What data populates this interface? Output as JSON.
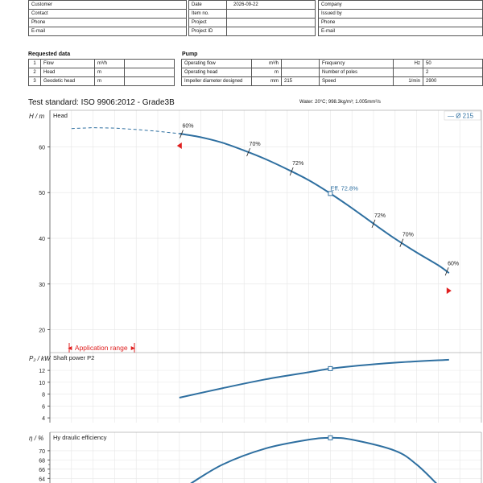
{
  "header": {
    "customer_rows": [
      {
        "label": "Customer",
        "label2": "Date",
        "value2": "2026-09-22",
        "label3": "Company"
      },
      {
        "label": "Contact",
        "label2": "Item no.",
        "value2": "",
        "label3": "Issued by"
      },
      {
        "label": "Phone",
        "label2": "Project",
        "value2": "",
        "label3": "Phone"
      },
      {
        "label": "E-mail",
        "label2": "Project ID",
        "value2": "",
        "label3": "E-mail"
      }
    ]
  },
  "requested_data": {
    "title": "Requested data",
    "rows": [
      {
        "n": "1",
        "label": "Flow",
        "unit": "m³/h",
        "value": ""
      },
      {
        "n": "2",
        "label": "Head",
        "unit": "m",
        "value": ""
      },
      {
        "n": "3",
        "label": "Geodetic head",
        "unit": "m",
        "value": ""
      }
    ]
  },
  "pump": {
    "title": "Pump",
    "rows": [
      {
        "label": "Operating flow",
        "unit": "m³/h",
        "value": "",
        "label2": "Frequency",
        "unit2": "Hz",
        "value2": "50"
      },
      {
        "label": "Operating head",
        "unit": "m",
        "value": "",
        "label2": "Number of poles",
        "unit2": "",
        "value2": "2"
      },
      {
        "label": "Impeller diameter designed",
        "unit": "mm",
        "value": "215",
        "label2": "Speed",
        "unit2": "1/min",
        "value2": "2900"
      }
    ]
  },
  "test_standard": "Test standard: ISO 9906:2012 - Grade3B",
  "water_note": "Water: 20°C; 998.3kg/m³; 1.005mm²/s",
  "chart_data": [
    {
      "type": "line",
      "title": "Head",
      "ylabel": "H / m",
      "ylim": [
        15,
        68
      ],
      "yticks": [
        20,
        30,
        40,
        50,
        60
      ],
      "xlim": [
        0,
        100
      ],
      "legend": "— Ø 215",
      "legend_position": "top-right",
      "series": [
        {
          "name": "Ø 215",
          "dashed_x": [
            5,
            10,
            15,
            20,
            25,
            30
          ],
          "dashed_y": [
            64,
            64.2,
            64.1,
            63.8,
            63.4,
            62.9
          ],
          "x": [
            30,
            35,
            40,
            45,
            50,
            55,
            60,
            65,
            70,
            75,
            80,
            85,
            90,
            92.5
          ],
          "y": [
            62.9,
            62.1,
            60.9,
            59.2,
            57.3,
            55.1,
            52.7,
            49.8,
            46.6,
            43.2,
            39.9,
            36.9,
            34.1,
            32.4
          ]
        }
      ],
      "eff_marks": [
        {
          "x": 30.5,
          "label": "60%"
        },
        {
          "x": 46,
          "label": "70%"
        },
        {
          "x": 56,
          "label": "72%"
        },
        {
          "x": 75,
          "label": "72%"
        },
        {
          "x": 81.5,
          "label": "70%"
        },
        {
          "x": 92,
          "label": "60%"
        }
      ],
      "bep": {
        "x": 65,
        "y": 49.8,
        "label": "Eff.  72.8%"
      },
      "application_range": {
        "label": "◄ Application range ►",
        "x_start": 30,
        "x_end": 92.5
      }
    },
    {
      "type": "line",
      "title": "Shaft power P2",
      "ylabel": "P₂ / kW",
      "ylim": [
        3.2,
        15
      ],
      "yticks": [
        4,
        6,
        8,
        10,
        12
      ],
      "xlim": [
        0,
        100
      ],
      "series": [
        {
          "x": [
            30,
            40,
            50,
            60,
            65,
            70,
            80,
            92.5
          ],
          "y": [
            7.4,
            9.0,
            10.5,
            11.7,
            12.3,
            12.7,
            13.3,
            13.8
          ]
        }
      ],
      "bep": {
        "x": 65,
        "y": 12.3
      }
    },
    {
      "type": "line",
      "title": "Hy draulic efficiency",
      "ylabel": "η / %",
      "ylim": [
        63,
        74
      ],
      "yticks": [
        64,
        66,
        68,
        70
      ],
      "ytick_labels": [
        "64",
        "66",
        "68",
        "70"
      ],
      "minor_yticks": [
        63,
        65,
        67
      ],
      "xlim": [
        0,
        100
      ],
      "series": [
        {
          "x": [
            32,
            40,
            50,
            60,
            65,
            70,
            80,
            85,
            90
          ],
          "y": [
            62.5,
            67.0,
            70.5,
            72.4,
            72.8,
            72.4,
            70.0,
            67.0,
            62.5
          ]
        }
      ],
      "bep": {
        "x": 65,
        "y": 72.8
      }
    }
  ]
}
